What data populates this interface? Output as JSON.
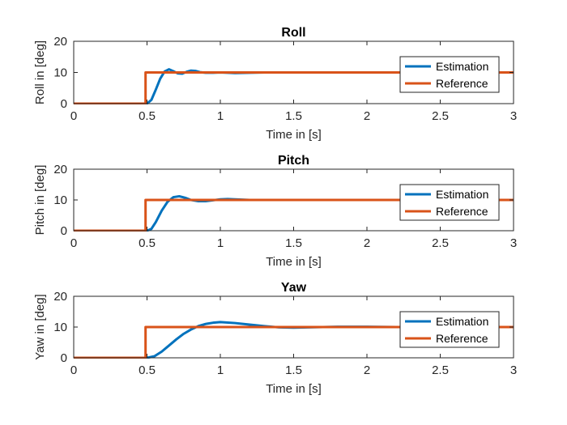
{
  "colors": {
    "estimation": "#0072BD",
    "reference": "#D95319",
    "axis": "#262626"
  },
  "chart_data": [
    {
      "type": "line",
      "title": "Roll",
      "xlabel": "Time in [s]",
      "ylabel": "Roll in [deg]",
      "xlim": [
        0,
        3
      ],
      "ylim": [
        0,
        20
      ],
      "xticks": [
        "0",
        "0.5",
        "1",
        "1.5",
        "2",
        "2.5",
        "3"
      ],
      "yticks": [
        "0",
        "10",
        "20"
      ],
      "grid": false,
      "legend_position": "top-right",
      "series": [
        {
          "name": "Estimation",
          "color": "#0072BD",
          "x": [
            0,
            0.5,
            0.53,
            0.56,
            0.59,
            0.62,
            0.65,
            0.68,
            0.71,
            0.74,
            0.77,
            0.8,
            0.83,
            0.86,
            0.9,
            0.95,
            1.0,
            1.1,
            1.2,
            1.3,
            1.4,
            1.6,
            1.8,
            2.0,
            3.0
          ],
          "y": [
            0,
            0,
            1.2,
            4.5,
            8.0,
            10.3,
            11.0,
            10.4,
            9.7,
            9.6,
            10.2,
            10.6,
            10.5,
            10.1,
            9.9,
            9.9,
            10.0,
            9.8,
            9.9,
            10.0,
            10.0,
            10.0,
            10.0,
            10.0,
            10.0
          ]
        },
        {
          "name": "Reference",
          "color": "#D95319",
          "x": [
            0,
            0.49,
            0.49,
            3.0
          ],
          "y": [
            0,
            0,
            10,
            10
          ]
        }
      ]
    },
    {
      "type": "line",
      "title": "Pitch",
      "xlabel": "Time in [s]",
      "ylabel": "Pitch in [deg]",
      "xlim": [
        0,
        3
      ],
      "ylim": [
        0,
        20
      ],
      "xticks": [
        "0",
        "0.5",
        "1",
        "1.5",
        "2",
        "2.5",
        "3"
      ],
      "yticks": [
        "0",
        "10",
        "20"
      ],
      "grid": false,
      "legend_position": "top-right",
      "series": [
        {
          "name": "Estimation",
          "color": "#0072BD",
          "x": [
            0,
            0.5,
            0.53,
            0.56,
            0.6,
            0.64,
            0.68,
            0.72,
            0.76,
            0.8,
            0.85,
            0.9,
            0.95,
            1.0,
            1.05,
            1.1,
            1.2,
            1.3,
            1.5,
            2.0,
            3.0
          ],
          "y": [
            0,
            0,
            0.6,
            2.8,
            6.5,
            9.4,
            10.9,
            11.2,
            10.7,
            10.0,
            9.6,
            9.6,
            9.9,
            10.2,
            10.3,
            10.2,
            10.0,
            10.0,
            10.0,
            10.0,
            10.0
          ]
        },
        {
          "name": "Reference",
          "color": "#D95319",
          "x": [
            0,
            0.49,
            0.49,
            3.0
          ],
          "y": [
            0,
            0,
            10,
            10
          ]
        }
      ]
    },
    {
      "type": "line",
      "title": "Yaw",
      "xlabel": "Time in [s]",
      "ylabel": "Yaw in [deg]",
      "xlim": [
        0,
        3
      ],
      "ylim": [
        0,
        20
      ],
      "xticks": [
        "0",
        "0.5",
        "1",
        "1.5",
        "2",
        "2.5",
        "3"
      ],
      "yticks": [
        "0",
        "10",
        "20"
      ],
      "grid": false,
      "legend_position": "top-right",
      "series": [
        {
          "name": "Estimation",
          "color": "#0072BD",
          "x": [
            0,
            0.5,
            0.55,
            0.6,
            0.65,
            0.7,
            0.75,
            0.8,
            0.85,
            0.9,
            0.95,
            1.0,
            1.1,
            1.2,
            1.3,
            1.4,
            1.5,
            1.6,
            1.7,
            1.8,
            2.0,
            2.2,
            2.5,
            3.0
          ],
          "y": [
            0,
            0,
            0.5,
            2.0,
            4.0,
            6.0,
            7.8,
            9.2,
            10.3,
            11.0,
            11.4,
            11.6,
            11.3,
            10.8,
            10.3,
            9.9,
            9.8,
            9.9,
            10.0,
            10.1,
            10.1,
            10.0,
            10.0,
            10.0
          ]
        },
        {
          "name": "Reference",
          "color": "#D95319",
          "x": [
            0,
            0.49,
            0.49,
            3.0
          ],
          "y": [
            0,
            0,
            10,
            10
          ]
        }
      ]
    }
  ]
}
